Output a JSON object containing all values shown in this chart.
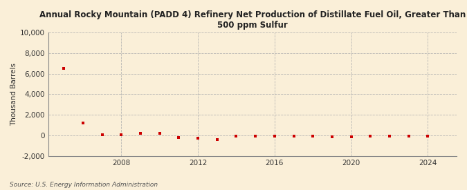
{
  "title": "Annual Rocky Mountain (PADD 4) Refinery Net Production of Distillate Fuel Oil, Greater Than\n500 ppm Sulfur",
  "ylabel": "Thousand Barrels",
  "source": "Source: U.S. Energy Information Administration",
  "background_color": "#faefd8",
  "marker_color": "#cc0000",
  "grid_color": "#b0b0b0",
  "years": [
    2005,
    2006,
    2007,
    2008,
    2009,
    2010,
    2011,
    2012,
    2013,
    2014,
    2015,
    2016,
    2017,
    2018,
    2019,
    2020,
    2021,
    2022,
    2023,
    2024
  ],
  "values": [
    6500,
    1200,
    50,
    50,
    180,
    180,
    -180,
    -250,
    -400,
    -80,
    -80,
    -80,
    -80,
    -80,
    -150,
    -150,
    -80,
    -80,
    -80,
    -80
  ],
  "ylim": [
    -2000,
    10000
  ],
  "yticks": [
    -2000,
    0,
    2000,
    4000,
    6000,
    8000,
    10000
  ],
  "xlim": [
    2004.2,
    2025.5
  ],
  "xticks": [
    2008,
    2012,
    2016,
    2020,
    2024
  ]
}
